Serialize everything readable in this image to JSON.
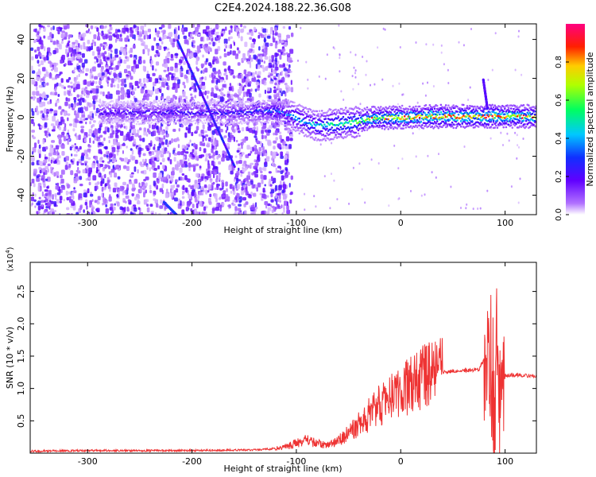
{
  "title": "C2E4.2024.188.22.36.G08",
  "chart_data": [
    {
      "type": "heatmap",
      "xlabel": "Height of straight line (km)",
      "ylabel": "Frequency (Hz)",
      "xlim": [
        -355,
        130
      ],
      "ylim": [
        -50,
        48
      ],
      "xticks": [
        -300,
        -200,
        -100,
        0,
        100
      ],
      "yticks": [
        -40,
        -20,
        0,
        20,
        40
      ],
      "colorbar": {
        "label": "Normalized spectral amplitude",
        "range": [
          0,
          1
        ],
        "ticks": [
          "0.0",
          "0.2",
          "0.4",
          "0.6",
          "0.8"
        ],
        "tick_values": [
          0.0,
          0.2,
          0.4,
          0.6,
          0.8
        ]
      },
      "colormap": [
        "#ffffff",
        "#9b00ff",
        "#2a00ff",
        "#00d8ff",
        "#00ff40",
        "#ffff00",
        "#ff2000",
        "#ff0080"
      ],
      "ridge": [
        {
          "x": -290,
          "y": 3,
          "amp": 0.2
        },
        {
          "x": -200,
          "y": 3,
          "amp": 0.22
        },
        {
          "x": -150,
          "y": 3,
          "amp": 0.25
        },
        {
          "x": -120,
          "y": 4,
          "amp": 0.35
        },
        {
          "x": -100,
          "y": 0,
          "amp": 0.4
        },
        {
          "x": -80,
          "y": -4,
          "amp": 0.45
        },
        {
          "x": -65,
          "y": -3,
          "amp": 0.5
        },
        {
          "x": -45,
          "y": -2,
          "amp": 0.55
        },
        {
          "x": -30,
          "y": 0,
          "amp": 0.7
        },
        {
          "x": 0,
          "y": 0.5,
          "amp": 0.75
        },
        {
          "x": 40,
          "y": 1,
          "amp": 0.8
        },
        {
          "x": 80,
          "y": 1,
          "amp": 0.85
        },
        {
          "x": 95,
          "y": 1,
          "amp": 0.85
        },
        {
          "x": 130,
          "y": 1,
          "amp": 0.7
        }
      ],
      "streaks": [
        {
          "x": [
            -215,
            -160
          ],
          "y": [
            40,
            -25
          ],
          "amp": 0.25
        },
        {
          "x": [
            -228,
            -215
          ],
          "y": [
            -43,
            -50
          ],
          "amp": 0.3
        },
        {
          "x": [
            78,
            82
          ],
          "y": [
            20,
            5
          ],
          "amp": 0.2
        }
      ],
      "noise_extent_x": [
        -355,
        -105
      ]
    },
    {
      "type": "line",
      "xlabel": "Height of straight line (km)",
      "ylabel": "SNR (10 * v/v)",
      "y_multiplier": "(x10",
      "y_multiplier_exp": "4",
      "y_multiplier_close": ")",
      "xlim": [
        -355,
        130
      ],
      "ylim": [
        0,
        2.95
      ],
      "xticks": [
        -300,
        -200,
        -100,
        0,
        100
      ],
      "yticks": [
        0.5,
        1.0,
        1.5,
        2.0,
        2.5
      ],
      "ytick_labels": [
        "0.5",
        "1.0",
        "1.5",
        "2.0",
        "2.5"
      ],
      "color": "#ee3333",
      "series": [
        {
          "x": [
            -355,
            -300,
            -200,
            -140,
            -120,
            -110,
            -100,
            -90,
            -80,
            -70,
            -60,
            -50,
            -40,
            -30,
            -20,
            -10,
            0,
            10,
            20,
            30,
            40,
            50,
            60,
            70,
            75,
            80,
            85,
            88,
            90,
            92,
            94,
            96,
            98,
            100,
            110,
            120,
            130
          ],
          "y": [
            0.03,
            0.04,
            0.04,
            0.05,
            0.07,
            0.1,
            0.15,
            0.2,
            0.15,
            0.12,
            0.2,
            0.3,
            0.45,
            0.6,
            0.75,
            0.85,
            0.95,
            1.05,
            1.15,
            1.22,
            1.25,
            1.27,
            1.28,
            1.28,
            1.3,
            1.45,
            1.6,
            1.2,
            0.4,
            1.7,
            0.8,
            1.3,
            1.25,
            1.2,
            1.21,
            1.2,
            1.19
          ]
        }
      ]
    }
  ]
}
